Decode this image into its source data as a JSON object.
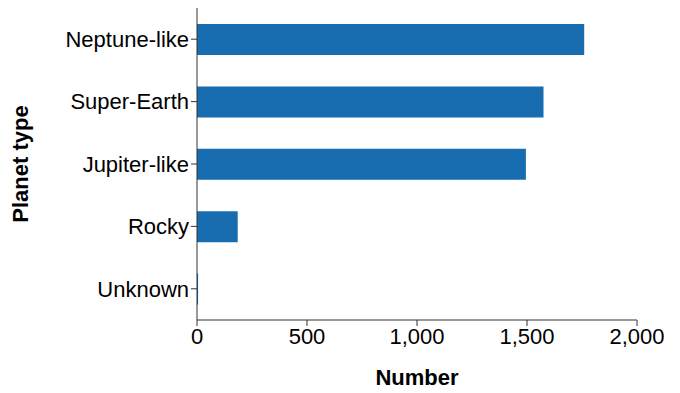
{
  "chart_data": {
    "type": "bar",
    "orientation": "horizontal",
    "categories": [
      "Neptune-like",
      "Super-Earth",
      "Jupiter-like",
      "Rocky",
      "Unknown"
    ],
    "values": [
      1760,
      1575,
      1495,
      185,
      5
    ],
    "color": "#176db0",
    "xlim": [
      0,
      2000
    ],
    "xticks": [
      0,
      500,
      {
        "value": 1000,
        "label": "1,000"
      },
      {
        "value": 1500,
        "label": "1,500"
      },
      {
        "value": 2000,
        "label": "2,000"
      }
    ],
    "xlabel": "Number",
    "ylabel": "Planet type",
    "grid": false
  }
}
